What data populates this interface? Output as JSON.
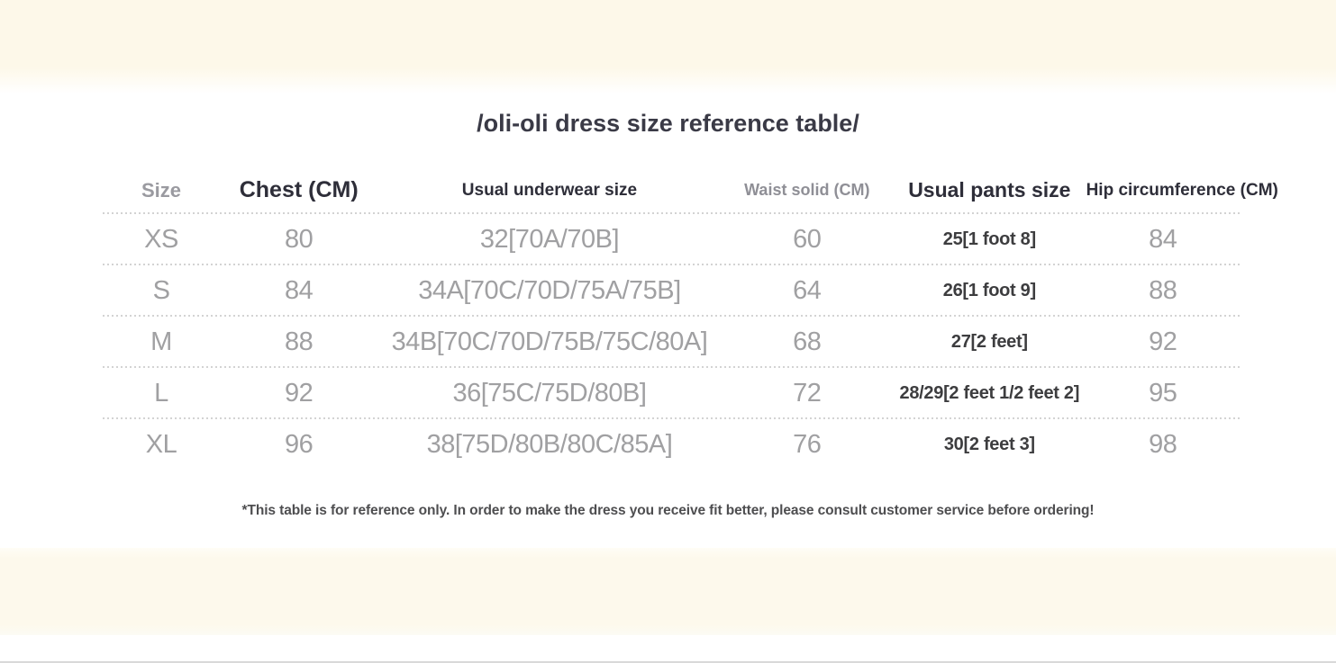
{
  "page": {
    "title": "/oli-oli dress size reference table/",
    "footnote": "*This table is for reference only. In order to make the dress you receive fit better, please consult customer service before ordering!"
  },
  "table": {
    "columns": [
      {
        "label": "Size"
      },
      {
        "label": "Chest (CM)"
      },
      {
        "label": "Usual underwear size"
      },
      {
        "label": "Waist solid (CM)"
      },
      {
        "label": "Usual pants size"
      },
      {
        "label": "Hip circumference (CM)"
      }
    ],
    "rows": [
      {
        "size": "XS",
        "chest": "80",
        "underwear": "32[70A/70B]",
        "waist": "60",
        "pants": "25[1 foot 8]",
        "hip": "84"
      },
      {
        "size": "S",
        "chest": "84",
        "underwear": "34A[70C/70D/75A/75B]",
        "waist": "64",
        "pants": "26[1 foot 9]",
        "hip": "88"
      },
      {
        "size": "M",
        "chest": "88",
        "underwear": "34B[70C/70D/75B/75C/80A]",
        "waist": "68",
        "pants": "27[2 feet]",
        "hip": "92"
      },
      {
        "size": "L",
        "chest": "92",
        "underwear": "36[75C/75D/80B]",
        "waist": "72",
        "pants": "28/29[2 feet 1/2 feet 2]",
        "hip": "95"
      },
      {
        "size": "XL",
        "chest": "96",
        "underwear": "38[75D/80B/80C/85A]",
        "waist": "76",
        "pants": "30[2 feet 3]",
        "hip": "98"
      }
    ]
  },
  "colors": {
    "band_cream": "#fdf8e9",
    "title_dark": "#3a3a46",
    "header_dark": "#2e2e39",
    "header_muted": "#8f8f96",
    "value_gray": "#a0a0a2",
    "value_dark": "#3d3d3f",
    "dotted_line": "#d3d3d3"
  }
}
